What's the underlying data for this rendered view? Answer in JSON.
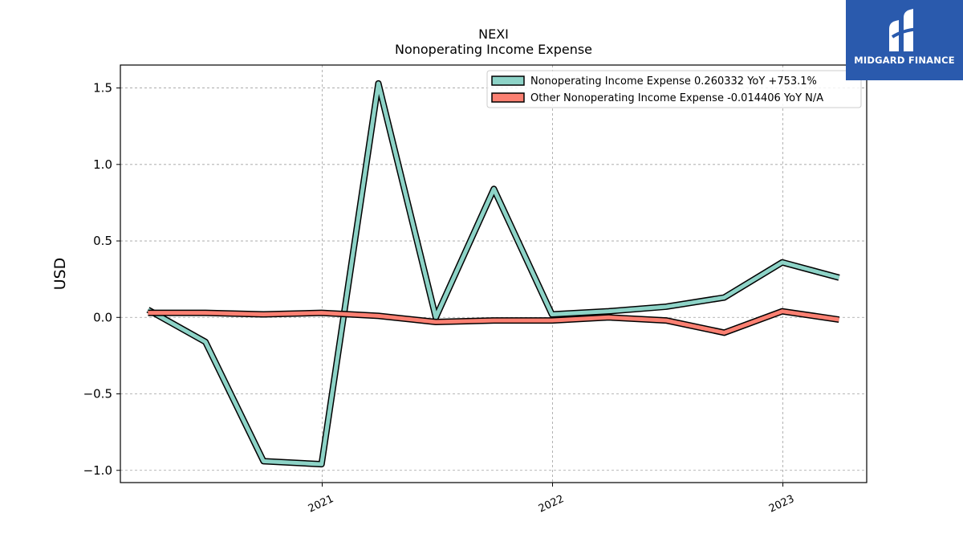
{
  "chart_data": {
    "type": "line",
    "title": "NEXI",
    "subtitle": "Nonoperating Income Expense",
    "ylabel": "USD",
    "xlabel": "",
    "ylim": [
      -1.08,
      1.65
    ],
    "yticks": [
      1.5,
      1.0,
      0.5,
      0.0,
      -0.5,
      -1.0
    ],
    "ytick_labels": [
      "1.5",
      "1.0",
      "0.5",
      "0.0",
      "−0.5",
      "−1.0"
    ],
    "xtick_labels": [
      "2021",
      "2022",
      "2023"
    ],
    "x": [
      "2020-03-31",
      "2020-06-30",
      "2020-09-30",
      "2020-12-31",
      "2021-03-31",
      "2021-06-30",
      "2021-09-30",
      "2021-12-31",
      "2022-03-31",
      "2022-06-30",
      "2022-09-30",
      "2022-12-31",
      "2023-03-31"
    ],
    "grid": true,
    "legend_position": "top-right",
    "series": [
      {
        "name": "Nonoperating Income Expense  0.260332 YoY +753.1%",
        "color": "#8dd3c7",
        "values": [
          0.05,
          -0.16,
          -0.94,
          -0.96,
          1.53,
          0.0,
          0.84,
          0.02,
          0.04,
          0.07,
          0.13,
          0.36,
          0.26
        ]
      },
      {
        "name": "Other Nonoperating Income Expense  -0.014406 YoY N/A",
        "color": "#fb8072",
        "values": [
          0.03,
          0.03,
          0.02,
          0.03,
          0.01,
          -0.03,
          -0.02,
          -0.02,
          0.0,
          -0.02,
          -0.1,
          0.04,
          -0.014406
        ]
      }
    ]
  },
  "watermark": {
    "text": "MIDGARD FINANCE",
    "background": "#2a5aad"
  }
}
